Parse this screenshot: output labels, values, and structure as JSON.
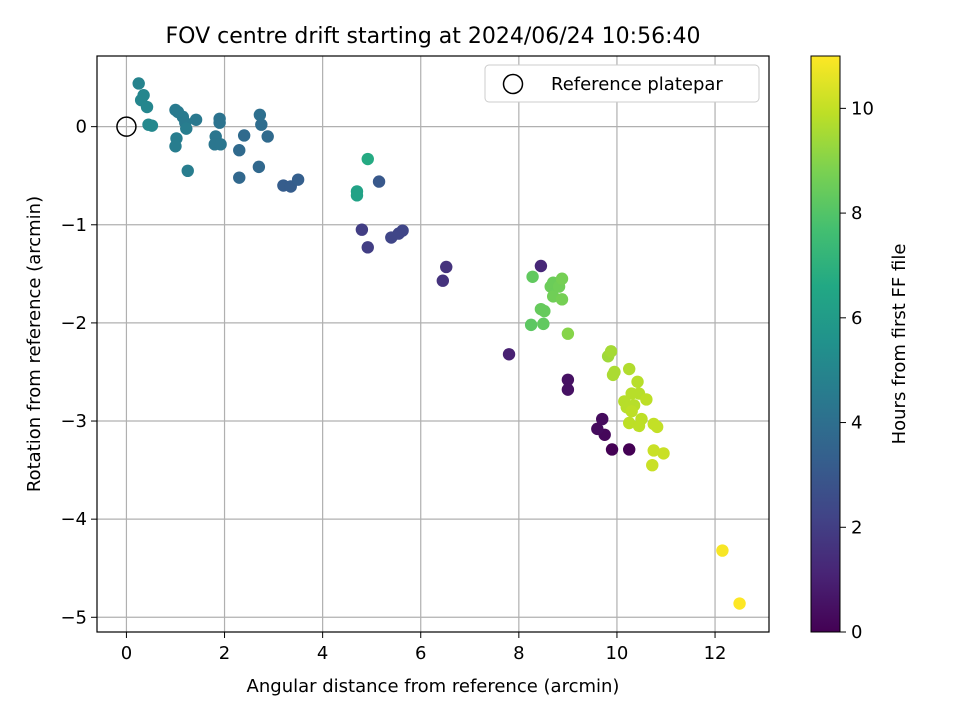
{
  "chart_data": {
    "type": "scatter",
    "title": "FOV centre drift starting at 2024/06/24 10:56:40",
    "xlabel": "Angular distance from reference (arcmin)",
    "ylabel": "Rotation from reference (arcmin)",
    "xlim": [
      -0.6,
      13.1
    ],
    "ylim": [
      -5.15,
      0.72
    ],
    "xticks": [
      0,
      2,
      4,
      6,
      8,
      10,
      12
    ],
    "yticks": [
      0,
      -1,
      -2,
      -3,
      -4,
      -5
    ],
    "ytick_labels": [
      "0",
      "−1",
      "−2",
      "−3",
      "−4",
      "−5"
    ],
    "grid": true,
    "legend": {
      "position": "top-right",
      "entries": [
        {
          "label": "Reference platepar",
          "marker": "open-circle"
        }
      ]
    },
    "reference_point": {
      "x": 0,
      "y": 0
    },
    "colorbar": {
      "label": "Hours from first FF file",
      "colormap": "viridis",
      "range": [
        0,
        11
      ],
      "ticks": [
        0,
        2,
        4,
        6,
        8,
        10
      ]
    },
    "points": [
      {
        "x": 9.9,
        "y": -3.29,
        "hours": 0.0
      },
      {
        "x": 10.25,
        "y": -3.29,
        "hours": 0.0
      },
      {
        "x": 9.75,
        "y": -3.14,
        "hours": 0.2
      },
      {
        "x": 9.6,
        "y": -3.08,
        "hours": 0.3
      },
      {
        "x": 9.7,
        "y": -2.98,
        "hours": 0.3
      },
      {
        "x": 9.0,
        "y": -2.58,
        "hours": 0.5
      },
      {
        "x": 9.0,
        "y": -2.68,
        "hours": 0.5
      },
      {
        "x": 7.8,
        "y": -2.32,
        "hours": 1.0
      },
      {
        "x": 8.45,
        "y": -1.42,
        "hours": 1.2
      },
      {
        "x": 6.45,
        "y": -1.57,
        "hours": 1.6
      },
      {
        "x": 6.52,
        "y": -1.43,
        "hours": 1.6
      },
      {
        "x": 4.8,
        "y": -1.05,
        "hours": 2.0
      },
      {
        "x": 4.92,
        "y": -1.23,
        "hours": 2.0
      },
      {
        "x": 5.4,
        "y": -1.13,
        "hours": 2.3
      },
      {
        "x": 5.55,
        "y": -1.09,
        "hours": 2.3
      },
      {
        "x": 5.63,
        "y": -1.06,
        "hours": 2.3
      },
      {
        "x": 5.15,
        "y": -0.56,
        "hours": 3.0
      },
      {
        "x": 3.2,
        "y": -0.6,
        "hours": 3.2
      },
      {
        "x": 3.35,
        "y": -0.61,
        "hours": 3.2
      },
      {
        "x": 3.5,
        "y": -0.54,
        "hours": 3.3
      },
      {
        "x": 2.7,
        "y": -0.41,
        "hours": 3.7
      },
      {
        "x": 2.3,
        "y": -0.52,
        "hours": 3.7
      },
      {
        "x": 2.3,
        "y": -0.24,
        "hours": 3.8
      },
      {
        "x": 2.4,
        "y": -0.09,
        "hours": 3.8
      },
      {
        "x": 2.88,
        "y": -0.1,
        "hours": 3.8
      },
      {
        "x": 2.75,
        "y": 0.02,
        "hours": 3.9
      },
      {
        "x": 2.72,
        "y": 0.12,
        "hours": 4.0
      },
      {
        "x": 1.9,
        "y": 0.08,
        "hours": 4.2
      },
      {
        "x": 1.9,
        "y": 0.04,
        "hours": 4.2
      },
      {
        "x": 1.82,
        "y": -0.1,
        "hours": 4.3
      },
      {
        "x": 1.8,
        "y": -0.18,
        "hours": 4.3
      },
      {
        "x": 1.92,
        "y": -0.18,
        "hours": 4.3
      },
      {
        "x": 1.42,
        "y": 0.07,
        "hours": 4.4
      },
      {
        "x": 1.15,
        "y": 0.1,
        "hours": 4.5
      },
      {
        "x": 1.0,
        "y": 0.17,
        "hours": 4.5
      },
      {
        "x": 1.05,
        "y": 0.15,
        "hours": 4.5
      },
      {
        "x": 1.2,
        "y": 0.04,
        "hours": 4.5
      },
      {
        "x": 1.22,
        "y": -0.02,
        "hours": 4.6
      },
      {
        "x": 1.02,
        "y": -0.12,
        "hours": 4.6
      },
      {
        "x": 1.0,
        "y": -0.2,
        "hours": 4.6
      },
      {
        "x": 1.25,
        "y": -0.45,
        "hours": 4.6
      },
      {
        "x": 0.25,
        "y": 0.44,
        "hours": 4.9
      },
      {
        "x": 0.3,
        "y": 0.27,
        "hours": 5.0
      },
      {
        "x": 0.35,
        "y": 0.32,
        "hours": 5.0
      },
      {
        "x": 0.42,
        "y": 0.2,
        "hours": 5.0
      },
      {
        "x": 0.45,
        "y": 0.02,
        "hours": 5.1
      },
      {
        "x": 0.52,
        "y": 0.01,
        "hours": 5.1
      },
      {
        "x": 4.7,
        "y": -0.66,
        "hours": 6.3
      },
      {
        "x": 4.7,
        "y": -0.7,
        "hours": 6.3
      },
      {
        "x": 4.92,
        "y": -0.33,
        "hours": 6.7
      },
      {
        "x": 8.28,
        "y": -1.53,
        "hours": 8.3
      },
      {
        "x": 8.25,
        "y": -2.02,
        "hours": 8.2
      },
      {
        "x": 8.5,
        "y": -2.01,
        "hours": 8.3
      },
      {
        "x": 8.45,
        "y": -1.86,
        "hours": 8.4
      },
      {
        "x": 8.52,
        "y": -1.88,
        "hours": 8.4
      },
      {
        "x": 8.65,
        "y": -1.63,
        "hours": 8.5
      },
      {
        "x": 8.7,
        "y": -1.59,
        "hours": 8.5
      },
      {
        "x": 8.7,
        "y": -1.73,
        "hours": 8.6
      },
      {
        "x": 8.82,
        "y": -1.63,
        "hours": 8.6
      },
      {
        "x": 8.88,
        "y": -1.55,
        "hours": 8.7
      },
      {
        "x": 8.88,
        "y": -1.76,
        "hours": 8.7
      },
      {
        "x": 9.0,
        "y": -2.11,
        "hours": 9.0
      },
      {
        "x": 9.82,
        "y": -2.34,
        "hours": 9.4
      },
      {
        "x": 9.88,
        "y": -2.29,
        "hours": 9.5
      },
      {
        "x": 9.92,
        "y": -2.53,
        "hours": 9.6
      },
      {
        "x": 9.95,
        "y": -2.5,
        "hours": 9.6
      },
      {
        "x": 10.25,
        "y": -2.47,
        "hours": 9.7
      },
      {
        "x": 10.42,
        "y": -2.6,
        "hours": 9.8
      },
      {
        "x": 10.45,
        "y": -2.72,
        "hours": 9.8
      },
      {
        "x": 10.3,
        "y": -2.72,
        "hours": 9.8
      },
      {
        "x": 10.15,
        "y": -2.8,
        "hours": 9.8
      },
      {
        "x": 10.2,
        "y": -2.86,
        "hours": 9.8
      },
      {
        "x": 10.35,
        "y": -2.84,
        "hours": 9.8
      },
      {
        "x": 10.3,
        "y": -2.9,
        "hours": 9.9
      },
      {
        "x": 10.6,
        "y": -2.78,
        "hours": 9.9
      },
      {
        "x": 10.5,
        "y": -2.98,
        "hours": 9.9
      },
      {
        "x": 10.25,
        "y": -3.02,
        "hours": 9.9
      },
      {
        "x": 10.45,
        "y": -3.05,
        "hours": 9.9
      },
      {
        "x": 10.75,
        "y": -3.03,
        "hours": 10.0
      },
      {
        "x": 10.82,
        "y": -3.06,
        "hours": 10.0
      },
      {
        "x": 10.75,
        "y": -3.3,
        "hours": 10.1
      },
      {
        "x": 10.95,
        "y": -3.33,
        "hours": 10.1
      },
      {
        "x": 10.72,
        "y": -3.45,
        "hours": 10.1
      },
      {
        "x": 12.15,
        "y": -4.32,
        "hours": 10.9
      },
      {
        "x": 12.5,
        "y": -4.86,
        "hours": 11.0
      }
    ]
  }
}
